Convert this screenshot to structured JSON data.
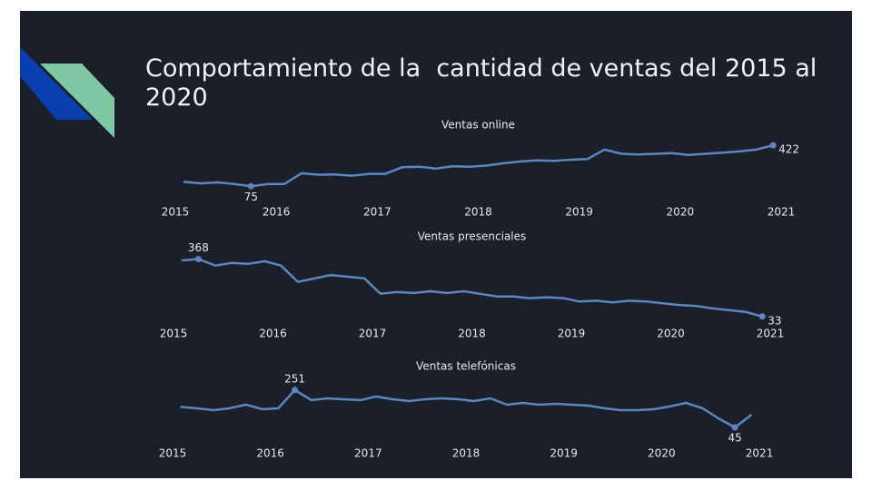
{
  "title": "Comportamiento de la  cantidad de ventas del 2015 al 2020",
  "chart_data": [
    {
      "type": "line",
      "title": "Ventas online",
      "color": "#5b86c0",
      "x": [
        2015.08,
        2015.25,
        2015.42,
        2015.58,
        2015.75,
        2015.92,
        2016.08,
        2016.25,
        2016.42,
        2016.58,
        2016.75,
        2016.92,
        2017.08,
        2017.25,
        2017.42,
        2017.58,
        2017.75,
        2017.92,
        2018.08,
        2018.25,
        2018.42,
        2018.58,
        2018.75,
        2018.92,
        2019.08,
        2019.25,
        2019.42,
        2019.58,
        2019.75,
        2019.92,
        2020.08,
        2020.25,
        2020.42,
        2020.58,
        2020.75,
        2020.92
      ],
      "values": [
        112,
        100,
        108,
        95,
        75,
        95,
        95,
        185,
        172,
        175,
        165,
        180,
        180,
        237,
        240,
        225,
        245,
        240,
        250,
        270,
        285,
        295,
        290,
        300,
        305,
        385,
        350,
        345,
        350,
        355,
        340,
        350,
        360,
        370,
        385,
        422
      ],
      "xlim": [
        2015,
        2021
      ],
      "xticks": [
        2015,
        2016,
        2017,
        2018,
        2019,
        2020,
        2021
      ],
      "ylim": [
        0,
        500
      ]
    },
    {
      "type": "line",
      "title": "Ventas presenciales",
      "color": "#5b86c0",
      "x": [
        2015.08,
        2015.25,
        2015.42,
        2015.58,
        2015.75,
        2015.92,
        2016.08,
        2016.25,
        2016.42,
        2016.58,
        2016.75,
        2016.92,
        2017.08,
        2017.25,
        2017.42,
        2017.58,
        2017.75,
        2017.92,
        2018.08,
        2018.25,
        2018.42,
        2018.58,
        2018.75,
        2018.92,
        2019.08,
        2019.25,
        2019.42,
        2019.58,
        2019.75,
        2019.92,
        2020.08,
        2020.25,
        2020.42,
        2020.58,
        2020.75,
        2020.92
      ],
      "values": [
        360,
        368,
        330,
        345,
        340,
        355,
        330,
        235,
        255,
        275,
        265,
        255,
        166,
        175,
        170,
        180,
        170,
        180,
        165,
        150,
        150,
        140,
        145,
        140,
        120,
        125,
        115,
        125,
        120,
        110,
        100,
        95,
        80,
        70,
        60,
        33
      ],
      "xlim": [
        2015,
        2021
      ],
      "xticks": [
        2015,
        2016,
        2017,
        2018,
        2019,
        2020,
        2021
      ],
      "ylim": [
        0,
        450
      ]
    },
    {
      "type": "line",
      "title": "Ventas telefónicas",
      "color": "#5b86c0",
      "x": [
        2015.08,
        2015.25,
        2015.42,
        2015.58,
        2015.75,
        2015.92,
        2016.08,
        2016.25,
        2016.42,
        2016.58,
        2016.75,
        2016.92,
        2017.08,
        2017.25,
        2017.42,
        2017.58,
        2017.75,
        2017.92,
        2018.08,
        2018.25,
        2018.42,
        2018.58,
        2018.75,
        2018.92,
        2019.08,
        2019.25,
        2019.42,
        2019.58,
        2019.75,
        2019.92,
        2020.08,
        2020.25,
        2020.42,
        2020.58,
        2020.75,
        2020.92
      ],
      "values": [
        158,
        150,
        140,
        150,
        170,
        145,
        150,
        251,
        195,
        205,
        200,
        195,
        215,
        200,
        190,
        200,
        205,
        200,
        190,
        205,
        170,
        180,
        170,
        175,
        170,
        165,
        150,
        140,
        140,
        145,
        160,
        180,
        150,
        95,
        45,
        115
      ],
      "xlim": [
        2015,
        2021
      ],
      "xticks": [
        2015,
        2016,
        2017,
        2018,
        2019,
        2020,
        2021
      ],
      "ylim": [
        0,
        300
      ]
    }
  ]
}
